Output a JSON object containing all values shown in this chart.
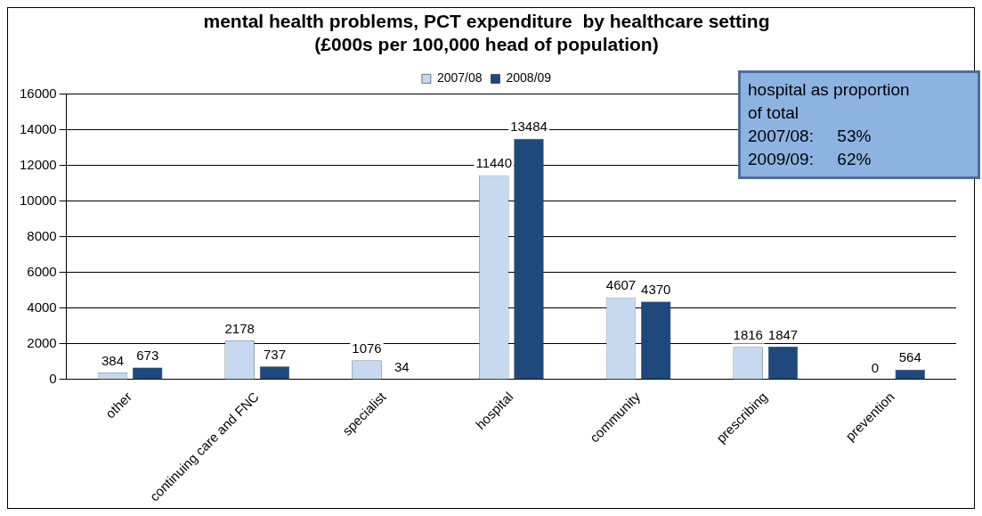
{
  "chart_data": {
    "type": "bar",
    "title": "mental health problems, PCT expenditure  by healthcare setting\n(£000s per 100,000 head of population)",
    "categories": [
      "other",
      "continuing care and FNC",
      "specialist",
      "hospital",
      "community",
      "prescribing",
      "prevention"
    ],
    "series": [
      {
        "name": "2007/08",
        "color": "#c6d9f1",
        "values": [
          384,
          2178,
          1076,
          11440,
          4607,
          1816,
          0
        ]
      },
      {
        "name": "2008/09",
        "color": "#1f497d",
        "values": [
          673,
          737,
          34,
          13484,
          4370,
          1847,
          564
        ]
      }
    ],
    "ylim": [
      0,
      16000
    ],
    "yticks": [
      0,
      2000,
      4000,
      6000,
      8000,
      10000,
      12000,
      14000,
      16000
    ],
    "grid": "y",
    "legend": "top",
    "data_labels": true,
    "annotations": [
      "hospital as proportion",
      "of total",
      "2007/08:     53%",
      "2009/09:     62%"
    ]
  }
}
